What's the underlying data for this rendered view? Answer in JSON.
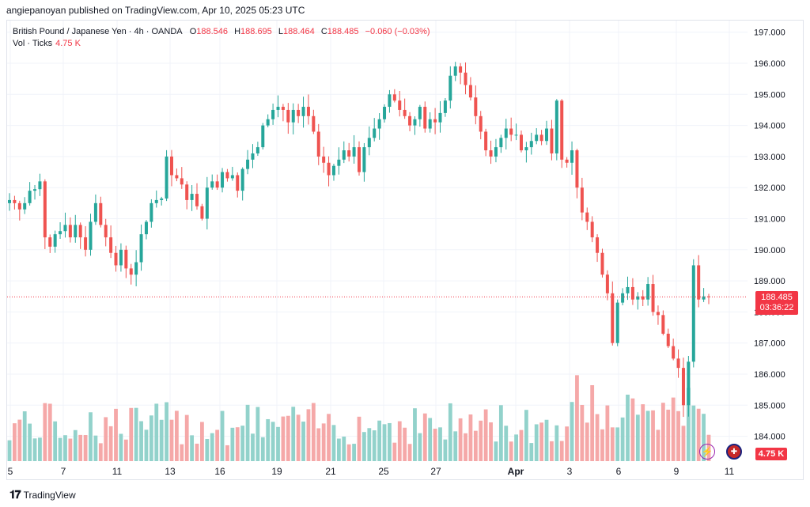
{
  "header": {
    "published_by": "angiepanoyan published on TradingView.com, Apr 10, 2025 05:23 UTC"
  },
  "legend": {
    "symbol": "British Pound / Japanese Yen · 4h · OANDA",
    "o_label": "O",
    "o_value": "188.546",
    "h_label": "H",
    "h_value": "188.695",
    "l_label": "L",
    "l_value": "188.464",
    "c_label": "C",
    "c_value": "188.485",
    "change": "−0.060 (−0.03%)",
    "vol_label": "Vol · Ticks",
    "vol_value": "4.75 K"
  },
  "price_tag": {
    "price": "188.485",
    "countdown": "03:36:22"
  },
  "vol_tag": "4.75 K",
  "footer": {
    "brand": "TradingView"
  },
  "colors": {
    "up": "#26a69a",
    "down": "#ef5350",
    "up_vol": "#92d2cb",
    "down_vol": "#f5a8a8",
    "price_line": "#f23645"
  },
  "icons": {
    "lightning": "lightning-icon",
    "flag": "uk-flag-icon"
  },
  "chart_data": {
    "type": "candlestick",
    "timeframe": "4h",
    "y_ticks": [
      "197.000",
      "196.000",
      "195.000",
      "194.000",
      "193.000",
      "192.000",
      "191.000",
      "190.000",
      "189.000",
      "188.000",
      "187.000",
      "186.000",
      "185.000",
      "184.000"
    ],
    "x_ticks": [
      "5",
      "7",
      "11",
      "13",
      "16",
      "19",
      "21",
      "25",
      "27",
      "Apr",
      "3",
      "6",
      "9",
      "11"
    ],
    "ylim": [
      183.3,
      197.6
    ],
    "last_price": 188.485,
    "close": [
      191.6,
      191.5,
      191.3,
      191.5,
      191.9,
      191.95,
      192.2,
      190.4,
      190.1,
      190.5,
      190.6,
      190.8,
      190.4,
      190.8,
      190.4,
      190.0,
      190.9,
      191.5,
      190.8,
      190.4,
      189.9,
      189.5,
      190.0,
      189.4,
      189.2,
      189.6,
      190.5,
      190.9,
      191.5,
      191.6,
      191.65,
      193.0,
      192.4,
      192.3,
      192.1,
      191.6,
      191.8,
      191.4,
      191.0,
      192.0,
      192.2,
      192.0,
      192.5,
      192.3,
      192.4,
      191.9,
      192.6,
      192.9,
      193.1,
      193.3,
      194.0,
      194.2,
      194.5,
      194.6,
      194.5,
      194.1,
      194.5,
      194.3,
      194.6,
      194.3,
      193.8,
      193.0,
      192.8,
      192.4,
      192.7,
      192.9,
      193.2,
      193.0,
      193.3,
      192.5,
      193.3,
      193.6,
      193.9,
      194.2,
      194.6,
      195.0,
      194.8,
      194.5,
      194.3,
      194.0,
      194.2,
      194.6,
      193.9,
      194.2,
      194.1,
      194.4,
      194.8,
      195.6,
      195.9,
      195.7,
      195.3,
      194.9,
      194.3,
      193.8,
      193.2,
      193.0,
      193.3,
      193.6,
      193.9,
      193.7,
      193.7,
      193.2,
      193.3,
      193.5,
      193.7,
      193.5,
      193.9,
      193.1,
      194.8,
      192.9,
      192.8,
      193.2,
      192.0,
      191.2,
      190.9,
      190.4,
      189.9,
      189.2,
      188.6,
      187.0,
      188.3,
      188.6,
      188.8,
      188.4,
      188.5,
      188.4,
      188.9,
      188.0,
      187.9,
      187.3,
      186.9,
      186.5,
      186.2,
      185.0,
      186.4,
      189.5,
      188.4,
      188.5,
      188.485
    ],
    "volume_scale_labeled": "4.75 K"
  }
}
